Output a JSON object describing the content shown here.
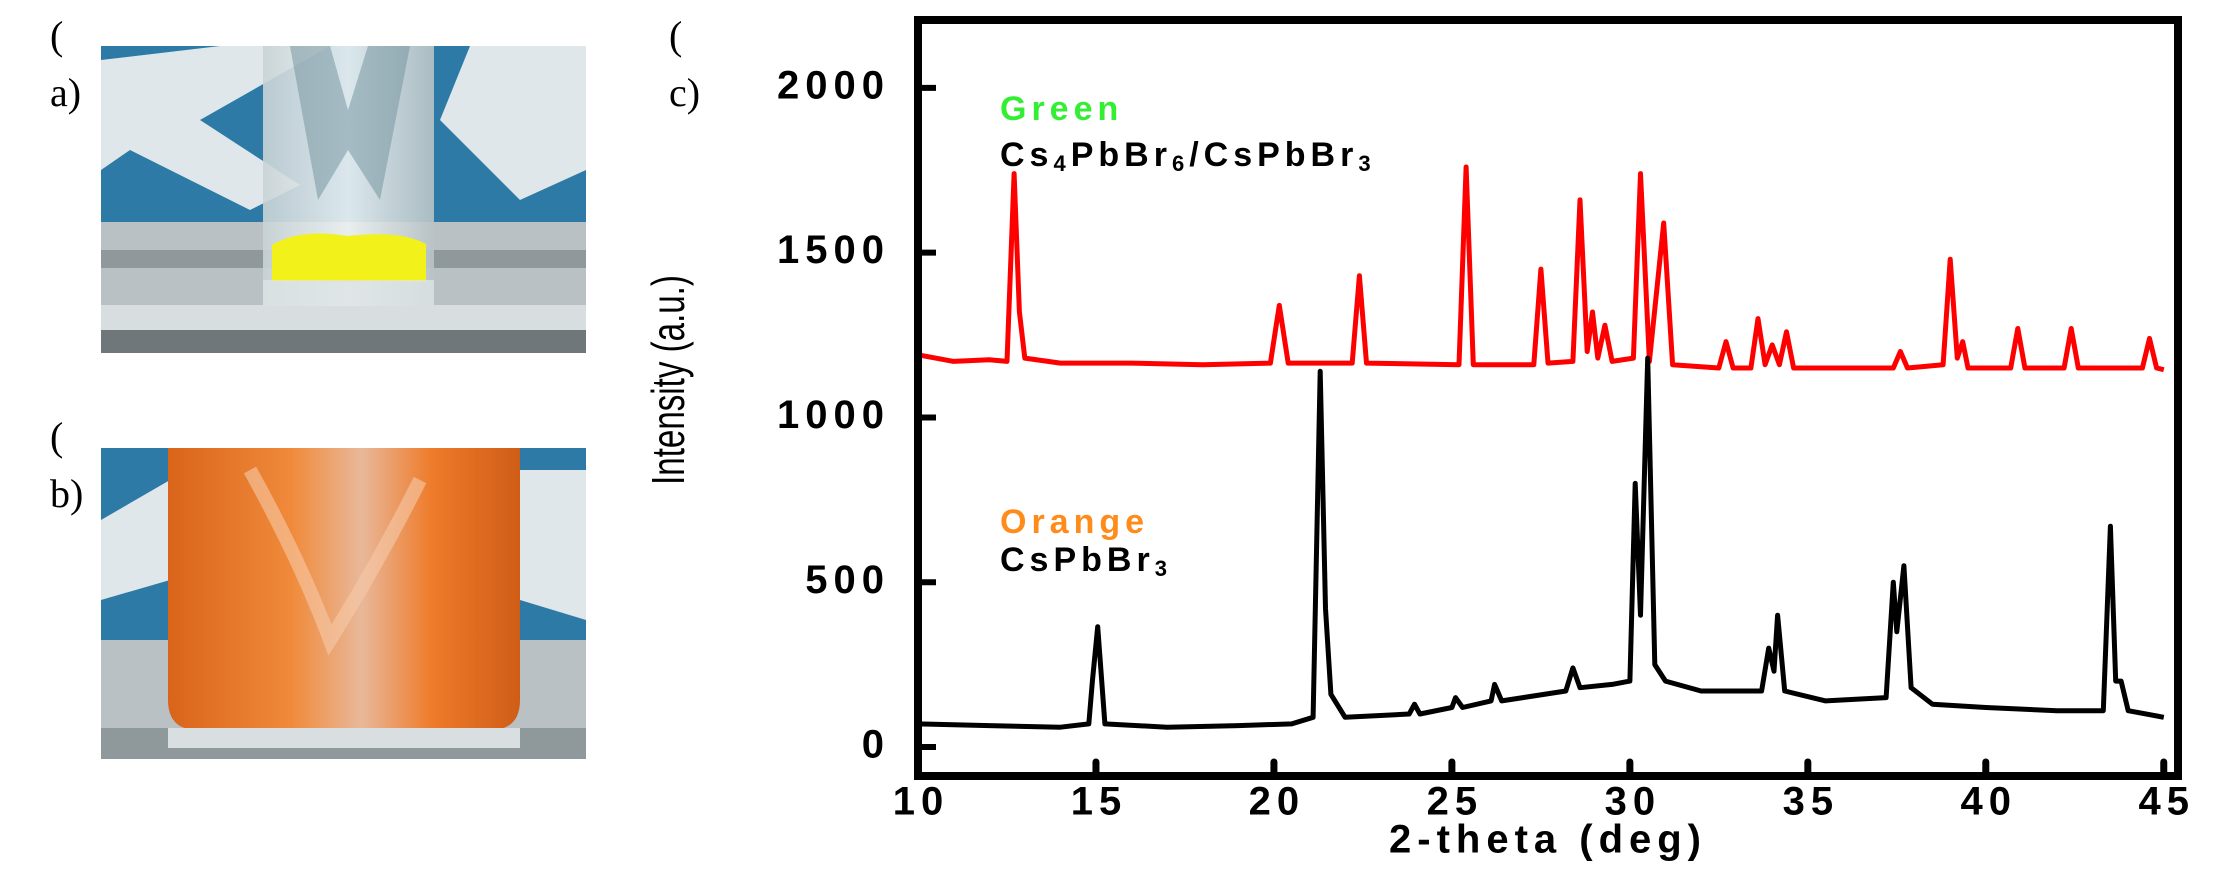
{
  "panels": {
    "a": [
      "(",
      "a)"
    ],
    "b": [
      "(",
      "b)"
    ],
    "c": [
      "(",
      "c)"
    ]
  },
  "chart_data": {
    "type": "line",
    "xlabel": "2-theta (deg)",
    "ylabel": "Intensity (a.u.)",
    "xlim": [
      10,
      45.4
    ],
    "xticks": [
      10,
      15,
      20,
      25,
      30,
      35,
      40,
      45
    ],
    "ylim": [
      -88,
      2206
    ],
    "yticks": [
      0,
      500,
      1000,
      1500,
      2000
    ],
    "series": [
      {
        "name": "Green",
        "formula": "Cs4PbBr6/CsPbBr3",
        "label_color": "#33ee33",
        "color": "#ff0000",
        "x": [
          10,
          11,
          12,
          12.5,
          12.7,
          12.85,
          13.0,
          14,
          16,
          18,
          19.9,
          20.15,
          20.4,
          22.2,
          22.4,
          22.6,
          25.2,
          25.4,
          25.6,
          27.3,
          27.5,
          27.7,
          28.4,
          28.6,
          28.8,
          28.95,
          29.1,
          29.3,
          29.5,
          30.1,
          30.3,
          30.55,
          30.95,
          31.2,
          32.5,
          32.7,
          32.9,
          33.4,
          33.6,
          33.8,
          34.0,
          34.2,
          34.4,
          34.6,
          37.4,
          37.6,
          37.8,
          38.8,
          39.0,
          39.2,
          39.35,
          39.5,
          40.7,
          40.9,
          41.1,
          42.2,
          42.4,
          42.6,
          44.4,
          44.6,
          44.8,
          45
        ],
        "values": [
          1190,
          1170,
          1175,
          1170,
          1740,
          1320,
          1180,
          1165,
          1165,
          1160,
          1165,
          1340,
          1165,
          1165,
          1430,
          1165,
          1160,
          1760,
          1160,
          1160,
          1450,
          1165,
          1170,
          1660,
          1200,
          1320,
          1180,
          1280,
          1170,
          1180,
          1740,
          1170,
          1590,
          1160,
          1150,
          1230,
          1150,
          1150,
          1300,
          1160,
          1220,
          1160,
          1260,
          1150,
          1150,
          1200,
          1150,
          1160,
          1480,
          1180,
          1230,
          1150,
          1150,
          1270,
          1150,
          1150,
          1270,
          1150,
          1150,
          1240,
          1150,
          1145
        ]
      },
      {
        "name": "Orange",
        "formula": "CsPbBr3",
        "label_color": "#ff8c1a",
        "color": "#000000",
        "x": [
          10,
          12,
          14,
          14.8,
          14.9,
          15.05,
          15.25,
          17,
          19,
          20.5,
          21.1,
          21.3,
          21.45,
          21.6,
          22,
          23.8,
          23.95,
          24.1,
          25,
          25.1,
          25.3,
          26.1,
          26.2,
          26.4,
          28.2,
          28.4,
          28.6,
          29.5,
          30.0,
          30.15,
          30.3,
          30.5,
          30.7,
          31,
          32,
          33.7,
          33.9,
          34.05,
          34.15,
          34.35,
          35.5,
          37.2,
          37.4,
          37.5,
          37.7,
          37.9,
          38.5,
          40,
          42,
          43.3,
          43.5,
          43.65,
          43.8,
          44,
          45
        ],
        "values": [
          70,
          65,
          60,
          70,
          200,
          365,
          70,
          60,
          65,
          70,
          90,
          1140,
          420,
          160,
          90,
          100,
          130,
          100,
          120,
          150,
          120,
          140,
          190,
          140,
          170,
          240,
          180,
          190,
          200,
          800,
          400,
          1180,
          250,
          200,
          170,
          170,
          300,
          230,
          400,
          170,
          140,
          150,
          500,
          350,
          550,
          180,
          130,
          120,
          110,
          110,
          670,
          200,
          200,
          110,
          90
        ]
      }
    ]
  }
}
